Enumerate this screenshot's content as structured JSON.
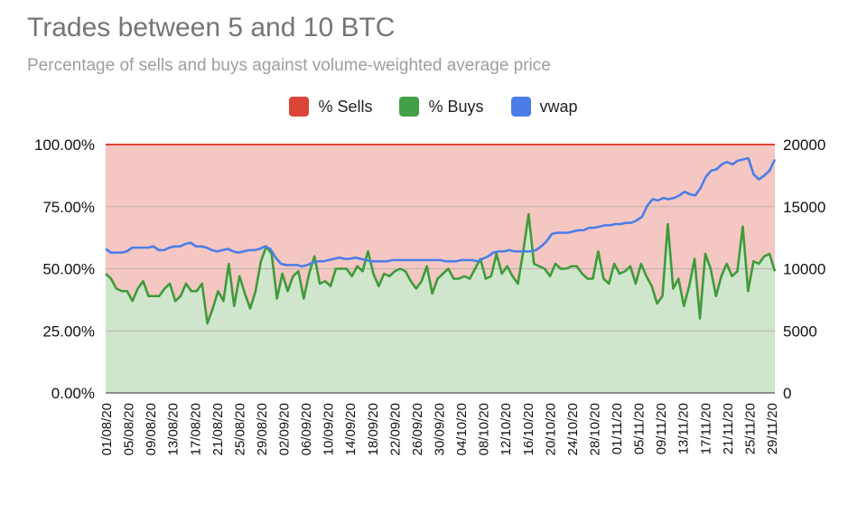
{
  "chart_data": {
    "type": "area",
    "title": "Trades between 5 and 10 BTC",
    "subtitle": "Percentage of sells and buys against volume-weighted average price",
    "legend": [
      {
        "name": "% Sells",
        "color": "#db4437"
      },
      {
        "name": "% Buys",
        "color": "#43a047"
      },
      {
        "name": "vwap",
        "color": "#4a7de8"
      }
    ],
    "y_left": {
      "ticks": [
        "100.00%",
        "75.00%",
        "50.00%",
        "25.00%",
        "0.00%"
      ],
      "range": [
        0,
        100
      ]
    },
    "y_right": {
      "ticks": [
        "20000",
        "15000",
        "10000",
        "5000",
        "0"
      ],
      "range": [
        0,
        20000
      ]
    },
    "x_tick_labels": [
      "01/08/20",
      "05/08/20",
      "09/08/20",
      "13/08/20",
      "17/08/20",
      "21/08/20",
      "25/08/20",
      "29/08/20",
      "02/09/20",
      "06/09/20",
      "10/09/20",
      "14/09/20",
      "18/09/20",
      "22/09/20",
      "26/09/20",
      "30/09/20",
      "04/10/20",
      "08/10/20",
      "12/10/20",
      "16/10/20",
      "20/10/20",
      "24/10/20",
      "28/10/20",
      "01/11/20",
      "05/11/20",
      "09/11/20",
      "13/11/20",
      "17/11/20",
      "21/11/20",
      "25/11/20",
      "29/11/20"
    ],
    "series": [
      {
        "name": "% Sells",
        "type": "area",
        "note": "fills from % Buys up to 100%"
      },
      {
        "name": "% Buys",
        "type": "area",
        "axis": "left",
        "values": [
          48,
          46,
          42,
          41,
          41,
          37,
          42,
          45,
          39,
          39,
          39,
          42,
          44,
          37,
          39,
          44,
          41,
          41,
          44,
          28,
          34,
          41,
          37,
          52,
          35,
          47,
          40,
          34,
          41,
          53,
          59,
          56,
          38,
          48,
          41,
          47,
          49,
          38,
          48,
          55,
          44,
          45,
          43,
          50,
          50,
          50,
          47,
          51,
          49,
          57,
          48,
          43,
          48,
          47,
          49,
          50,
          49,
          45,
          42,
          45,
          51,
          40,
          46,
          48,
          50,
          46,
          46,
          47,
          46,
          50,
          54,
          46,
          47,
          56,
          48,
          51,
          47,
          44,
          57,
          72,
          52,
          51,
          50,
          47,
          52,
          50,
          50,
          51,
          51,
          48,
          46,
          46,
          57,
          46,
          44,
          52,
          48,
          49,
          51,
          44,
          52,
          47,
          43,
          36,
          39,
          68,
          42,
          46,
          35,
          43,
          54,
          30,
          56,
          50,
          39,
          47,
          52,
          47,
          49,
          67,
          41,
          53,
          52,
          55,
          56,
          49
        ]
      },
      {
        "name": "vwap",
        "type": "line",
        "axis": "right",
        "values": [
          11600,
          11300,
          11300,
          11300,
          11400,
          11700,
          11700,
          11700,
          11700,
          11800,
          11500,
          11500,
          11700,
          11800,
          11800,
          12000,
          12100,
          11800,
          11800,
          11700,
          11500,
          11400,
          11500,
          11600,
          11400,
          11300,
          11400,
          11500,
          11500,
          11600,
          11800,
          11600,
          10900,
          10400,
          10300,
          10300,
          10300,
          10200,
          10300,
          10500,
          10600,
          10600,
          10700,
          10800,
          10900,
          10800,
          10800,
          10900,
          10800,
          10700,
          10600,
          10600,
          10600,
          10600,
          10700,
          10700,
          10700,
          10700,
          10700,
          10700,
          10700,
          10700,
          10700,
          10700,
          10600,
          10600,
          10600,
          10700,
          10700,
          10700,
          10600,
          10800,
          11000,
          11300,
          11400,
          11400,
          11500,
          11400,
          11400,
          11400,
          11400,
          11500,
          11800,
          12200,
          12800,
          12900,
          12900,
          12900,
          13000,
          13100,
          13100,
          13300,
          13300,
          13400,
          13500,
          13500,
          13600,
          13600,
          13700,
          13700,
          13900,
          14200,
          15100,
          15600,
          15500,
          15700,
          15600,
          15700,
          15900,
          16200,
          16000,
          15900,
          16500,
          17400,
          17900,
          18000,
          18400,
          18600,
          18400,
          18700,
          18800,
          18900,
          17600,
          17200,
          17500,
          17900,
          18800
        ]
      }
    ]
  }
}
